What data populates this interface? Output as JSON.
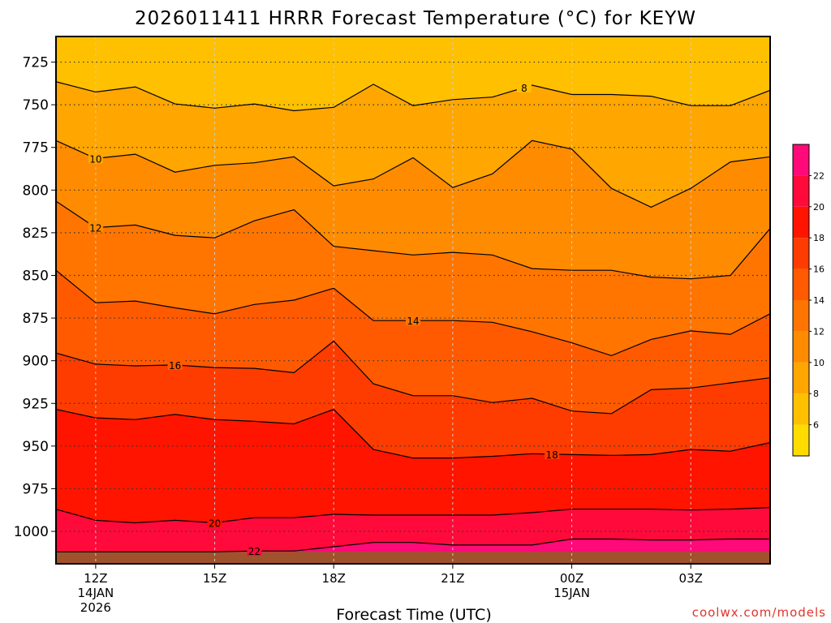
{
  "chart_data": {
    "type": "heatmap",
    "subtype": "filled-contour time-height cross-section",
    "title": "2026011411 HRRR Forecast Temperature (°C) for KEYW",
    "xlabel": "Forecast Time (UTC)",
    "ylabel": "",
    "credit": "coolwx.com/models",
    "x_axis": {
      "range_hours": [
        -1,
        17
      ],
      "ticks": [
        {
          "hour": 0,
          "label": "12Z",
          "sub1": "14JAN",
          "sub2": "2026"
        },
        {
          "hour": 3,
          "label": "15Z",
          "sub1": "",
          "sub2": ""
        },
        {
          "hour": 6,
          "label": "18Z",
          "sub1": "",
          "sub2": ""
        },
        {
          "hour": 9,
          "label": "21Z",
          "sub1": "",
          "sub2": ""
        },
        {
          "hour": 12,
          "label": "00Z",
          "sub1": "15JAN",
          "sub2": ""
        },
        {
          "hour": 15,
          "label": "03Z",
          "sub1": "",
          "sub2": ""
        }
      ]
    },
    "y_axis": {
      "units": "hPa",
      "range": [
        710,
        1019
      ],
      "inverted": true,
      "ticks": [
        "725",
        "750",
        "775",
        "800",
        "825",
        "850",
        "875",
        "900",
        "925",
        "950",
        "975",
        "1000"
      ]
    },
    "grid": true,
    "surface_pressure_hPa": 1012,
    "hours": [
      -1,
      0,
      1,
      2,
      3,
      4,
      5,
      6,
      7,
      8,
      9,
      10,
      11,
      12,
      13,
      14,
      15,
      16,
      17
    ],
    "contours": [
      {
        "level": 8,
        "label": "8",
        "label_hour": 10.8,
        "pressure": [
          736.5,
          742.5,
          739.5,
          749.5,
          752,
          749.5,
          753.5,
          751.5,
          738,
          750.5,
          747,
          745.5,
          738.5,
          744,
          744,
          745,
          750.5,
          750.5,
          741.5
        ]
      },
      {
        "level": 10,
        "label": "10",
        "label_hour": 0,
        "pressure": [
          771,
          781.5,
          779,
          789.5,
          785.5,
          784,
          780.5,
          797.5,
          793.5,
          781,
          798.5,
          790.5,
          771,
          776,
          799,
          810,
          799,
          783.5,
          780.5
        ]
      },
      {
        "level": 12,
        "label": "12",
        "label_hour": 0,
        "pressure": [
          806.5,
          822,
          820.5,
          826.5,
          828,
          818,
          811.5,
          833,
          835.5,
          838,
          836.5,
          838,
          846,
          847,
          847,
          851,
          852,
          850,
          822.5
        ]
      },
      {
        "level": 14,
        "label": "14",
        "label_hour": 8,
        "pressure": [
          847,
          866,
          865,
          869,
          872.5,
          867,
          864.5,
          857.5,
          876.5,
          876.5,
          876.5,
          877.5,
          883,
          889.5,
          897,
          887.5,
          882.5,
          884.5,
          872.5
        ]
      },
      {
        "level": 16,
        "label": "16",
        "label_hour": 2,
        "pressure": [
          895.5,
          902,
          903,
          902.5,
          904,
          904.5,
          907,
          888.5,
          913.5,
          920.5,
          920.5,
          924.5,
          922,
          929.5,
          931,
          917,
          916,
          913,
          910
        ]
      },
      {
        "level": 18,
        "label": "18",
        "label_hour": 11.5,
        "pressure": [
          928.5,
          933.5,
          934.5,
          931.5,
          934.5,
          935.5,
          937,
          928.5,
          952,
          957,
          957,
          956,
          954.5,
          955,
          955.5,
          955,
          952,
          953,
          948
        ]
      },
      {
        "level": 20,
        "label": "20",
        "label_hour": 3,
        "pressure": [
          987,
          993.5,
          995,
          993.5,
          995,
          992,
          992,
          990,
          990.5,
          990.5,
          990.5,
          990.5,
          989,
          987,
          987,
          987,
          987.5,
          987,
          986
        ]
      },
      {
        "level": 22,
        "label": "22",
        "label_hour": 4,
        "pressure": [
          1012,
          1012,
          1012,
          1012,
          1012,
          1011.5,
          1011.5,
          1009,
          1006.5,
          1006.5,
          1008,
          1008,
          1008,
          1004.5,
          1004.5,
          1005,
          1005,
          1004.5,
          1004.5
        ]
      }
    ],
    "colorbar": {
      "ticks": [
        "6",
        "8",
        "10",
        "12",
        "14",
        "16",
        "18",
        "20",
        "22"
      ],
      "bands": [
        {
          "lo": 4,
          "hi": 6,
          "color": "#ffdc00"
        },
        {
          "lo": 6,
          "hi": 8,
          "color": "#ffc000"
        },
        {
          "lo": 8,
          "hi": 10,
          "color": "#ffa600"
        },
        {
          "lo": 10,
          "hi": 12,
          "color": "#ff8c00"
        },
        {
          "lo": 12,
          "hi": 14,
          "color": "#ff7500"
        },
        {
          "lo": 14,
          "hi": 16,
          "color": "#ff5a00"
        },
        {
          "lo": 16,
          "hi": 18,
          "color": "#ff3c00"
        },
        {
          "lo": 18,
          "hi": 20,
          "color": "#ff1400"
        },
        {
          "lo": 20,
          "hi": 22,
          "color": "#ff0a3a"
        },
        {
          "lo": 22,
          "hi": 24,
          "color": "#ff0a78"
        }
      ]
    },
    "ground_color": "#a0522d"
  }
}
